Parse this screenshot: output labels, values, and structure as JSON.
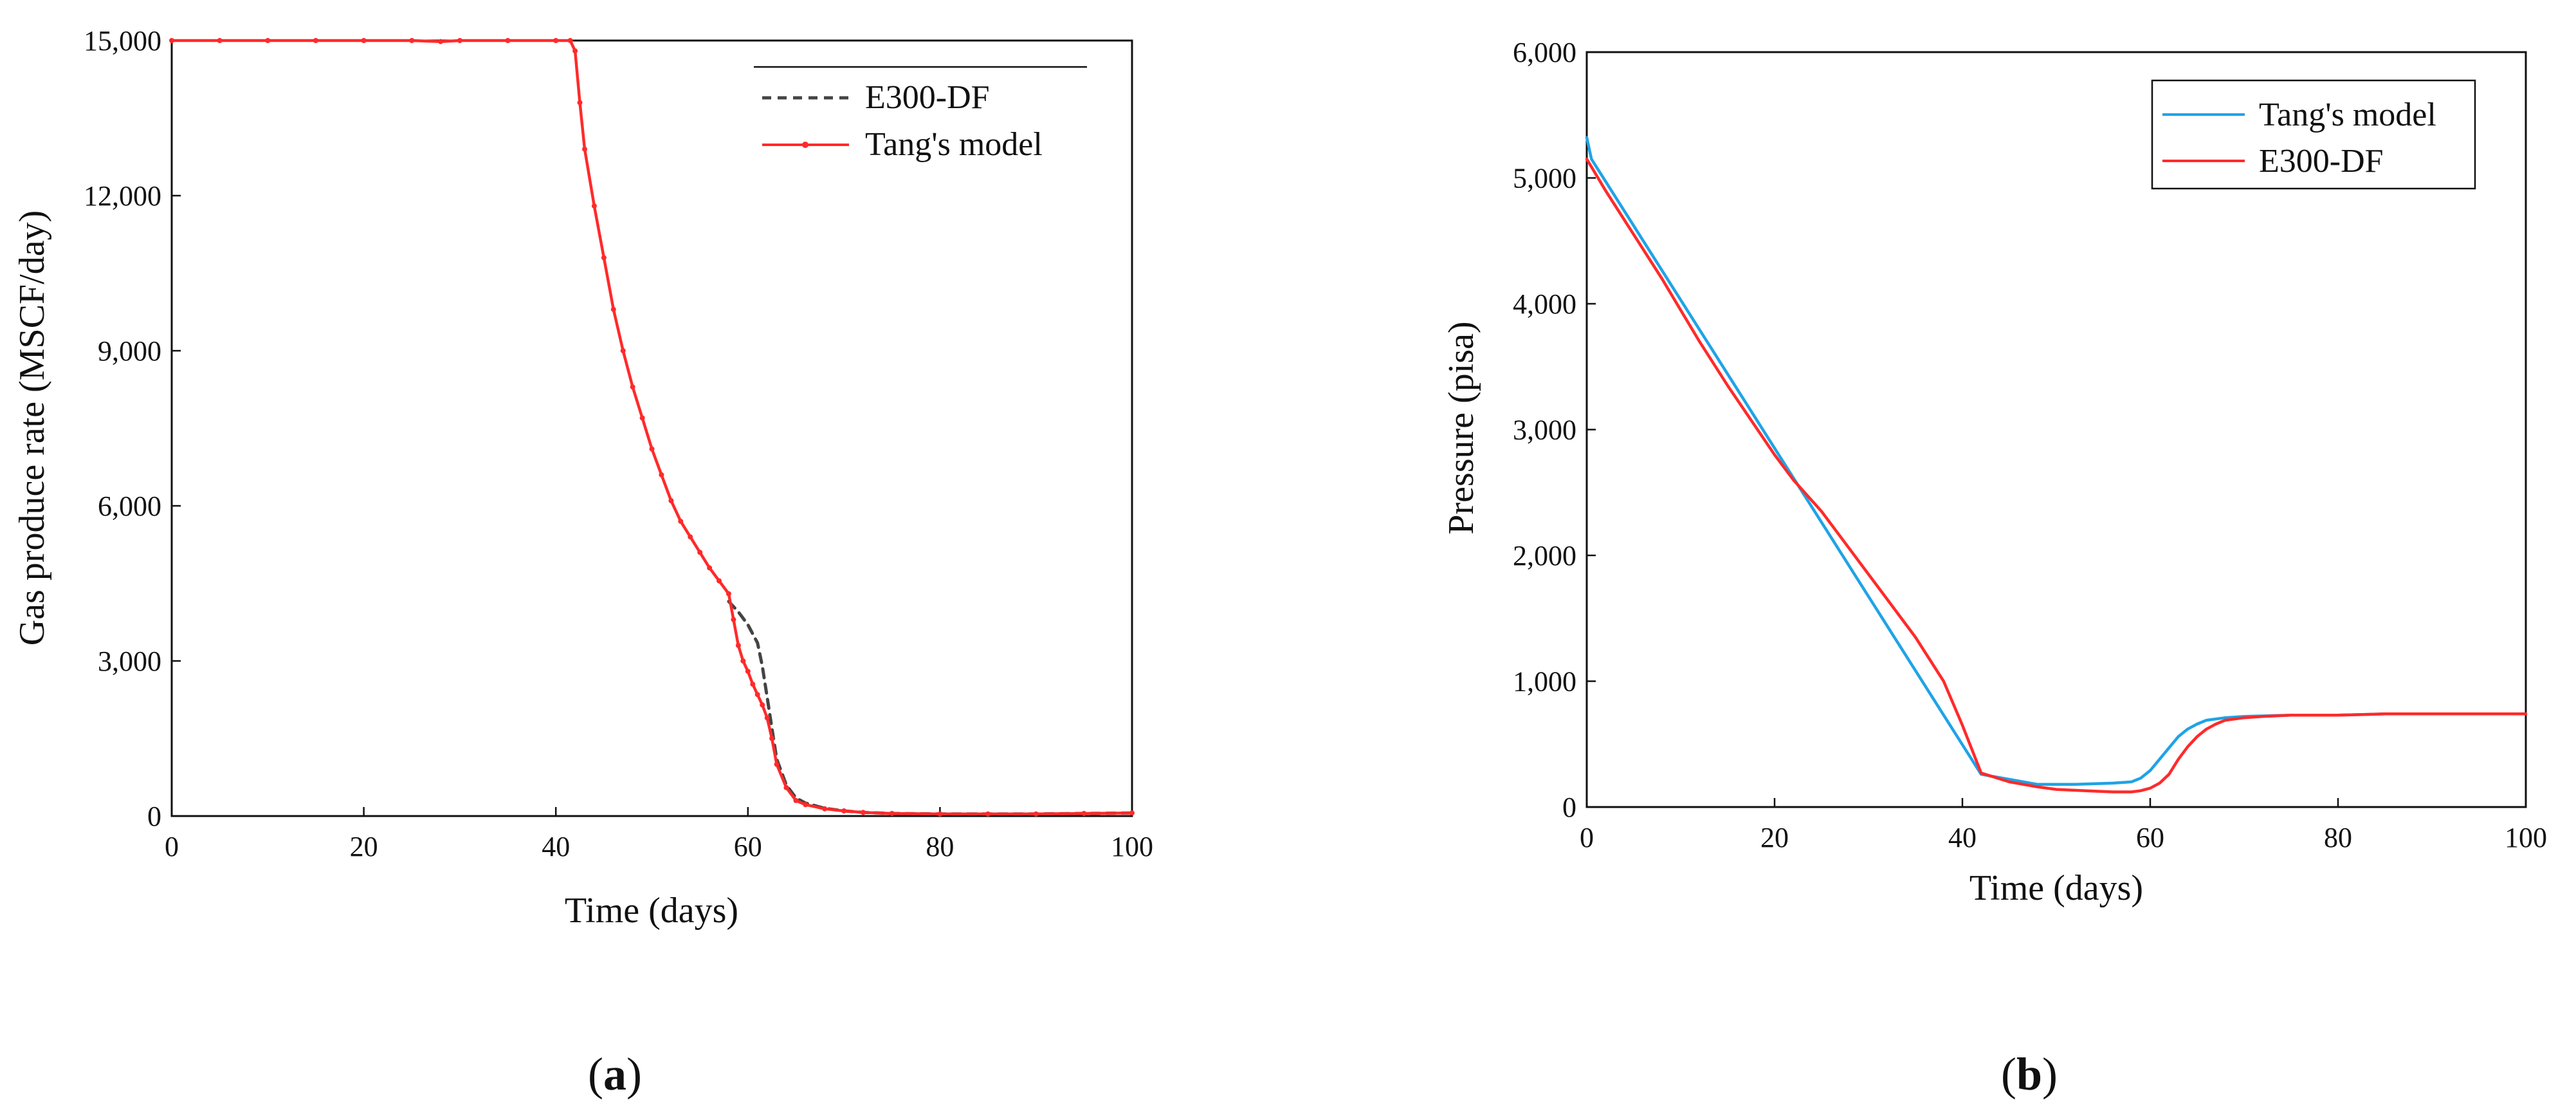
{
  "chart_data": [
    {
      "type": "line",
      "panel_label": "a",
      "xlabel": "Time (days)",
      "ylabel": "Gas produce rate (MSCF/day)",
      "xlim": [
        0,
        100
      ],
      "ylim": [
        0,
        15000
      ],
      "xticks": [
        0,
        20,
        40,
        60,
        80,
        100
      ],
      "yticks": [
        0,
        3000,
        6000,
        9000,
        12000,
        15000
      ],
      "ytick_labels": [
        "0",
        "3,000",
        "6,000",
        "9,000",
        "12,000",
        "15,000"
      ],
      "legend_position": "top-right",
      "series": [
        {
          "name": "E300-DF",
          "color": "#444444",
          "style": "dashed",
          "x": [
            58,
            59,
            60,
            61,
            61.5,
            62,
            62.5,
            63,
            64,
            65,
            66,
            68,
            70,
            72,
            75,
            80,
            85,
            90,
            95,
            100
          ],
          "y": [
            4150,
            3950,
            3700,
            3350,
            2900,
            2300,
            1700,
            1100,
            600,
            350,
            250,
            150,
            100,
            70,
            50,
            40,
            40,
            40,
            50,
            60
          ]
        },
        {
          "name": "Tang's model",
          "color": "#ff2a2a",
          "style": "solid-dots",
          "x": [
            0,
            5,
            10,
            15,
            20,
            25,
            28,
            30,
            35,
            40,
            41.5,
            42,
            42.5,
            43,
            44,
            45,
            46,
            47,
            48,
            49,
            50,
            51,
            52,
            53,
            54,
            55,
            56,
            57,
            58,
            58.5,
            59,
            59.5,
            60,
            60.5,
            61,
            61.5,
            62,
            62.5,
            63,
            64,
            65,
            66,
            68,
            70,
            72,
            75,
            80,
            85,
            90,
            95,
            100
          ],
          "y": [
            15000,
            15000,
            15000,
            15000,
            15000,
            15000,
            14980,
            15000,
            15000,
            15000,
            15000,
            14800,
            13800,
            12900,
            11800,
            10800,
            9800,
            9000,
            8300,
            7700,
            7100,
            6600,
            6100,
            5700,
            5400,
            5100,
            4800,
            4550,
            4300,
            3800,
            3300,
            3000,
            2800,
            2550,
            2350,
            2150,
            1900,
            1500,
            1000,
            550,
            300,
            220,
            140,
            100,
            70,
            50,
            40,
            40,
            40,
            50,
            60
          ]
        }
      ]
    },
    {
      "type": "line",
      "panel_label": "b",
      "xlabel": "Time (days)",
      "ylabel": "Pressure (pisa)",
      "xlim": [
        0,
        100
      ],
      "ylim": [
        0,
        6000
      ],
      "xticks": [
        0,
        20,
        40,
        60,
        80,
        100
      ],
      "yticks": [
        0,
        1000,
        2000,
        3000,
        4000,
        5000,
        6000
      ],
      "ytick_labels": [
        "0",
        "1,000",
        "2,000",
        "3,000",
        "4,000",
        "5,000",
        "6,000"
      ],
      "legend_position": "top-right",
      "series": [
        {
          "name": "Tang's model",
          "color": "#1fa3e6",
          "style": "solid",
          "x": [
            0,
            0.5,
            42,
            45,
            48,
            52,
            56,
            58,
            59,
            60,
            61,
            62,
            63,
            64,
            65,
            66,
            68,
            70,
            75,
            80,
            85,
            90,
            95,
            100
          ],
          "y": [
            5320,
            5150,
            260,
            220,
            180,
            180,
            190,
            200,
            230,
            290,
            380,
            470,
            560,
            620,
            660,
            690,
            710,
            720,
            730,
            730,
            740,
            740,
            740,
            740
          ]
        },
        {
          "name": "E300-DF",
          "color": "#ff2a2a",
          "style": "solid",
          "x": [
            0,
            2,
            5,
            8,
            10,
            12,
            15,
            18,
            20,
            22,
            25,
            28,
            30,
            32,
            35,
            38,
            40,
            42,
            45,
            48,
            50,
            53,
            56,
            58,
            59,
            60,
            61,
            62,
            63,
            64,
            65,
            66,
            67,
            68,
            70,
            72,
            75,
            78,
            80,
            85,
            90,
            95,
            100
          ],
          "y": [
            5150,
            4900,
            4550,
            4200,
            3950,
            3700,
            3350,
            3020,
            2800,
            2600,
            2350,
            2050,
            1850,
            1650,
            1350,
            1000,
            650,
            270,
            200,
            160,
            140,
            130,
            120,
            120,
            130,
            150,
            190,
            260,
            380,
            480,
            560,
            620,
            660,
            690,
            710,
            720,
            730,
            730,
            730,
            740,
            740,
            740,
            740
          ]
        }
      ]
    }
  ],
  "icons": {
    "legend_dot": "dot-marker-icon"
  }
}
